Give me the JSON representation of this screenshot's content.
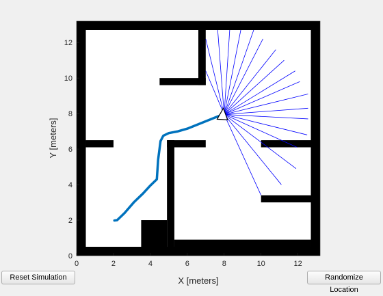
{
  "buttons": {
    "reset_label": "Reset Simulation",
    "randomize_label": "Randomize Location"
  },
  "colors": {
    "background": "#f0f0f0",
    "axes_bg": "#ffffff",
    "obstacle": "#000000",
    "path": "#0072bd",
    "rays": "#0000ff",
    "robot_fill": "#ffffff",
    "robot_edge": "#000000"
  },
  "chart_data": {
    "type": "line",
    "xlabel": "X [meters]",
    "ylabel": "Y [meters]",
    "xlim": [
      0,
      13.2
    ],
    "ylim": [
      0,
      13.2
    ],
    "xticks": [
      0,
      2,
      4,
      6,
      8,
      10,
      12
    ],
    "yticks": [
      0,
      2,
      4,
      6,
      8,
      10,
      12
    ],
    "grid": false,
    "obstacles": [
      {
        "x0": 0,
        "y0": 0,
        "x1": 0.5,
        "y1": 13.2
      },
      {
        "x0": 12.7,
        "y0": 0,
        "x1": 13.2,
        "y1": 13.2
      },
      {
        "x0": 0,
        "y0": 12.7,
        "x1": 13.2,
        "y1": 13.2
      },
      {
        "x0": 0,
        "y0": 0,
        "x1": 13.2,
        "y1": 0.5
      },
      {
        "x0": 6.6,
        "y0": 9.6,
        "x1": 7.0,
        "y1": 12.7
      },
      {
        "x0": 4.5,
        "y0": 9.6,
        "x1": 7.0,
        "y1": 10.0
      },
      {
        "x0": 0.5,
        "y0": 6.1,
        "x1": 2.0,
        "y1": 6.5
      },
      {
        "x0": 4.9,
        "y0": 0.5,
        "x1": 5.3,
        "y1": 6.5
      },
      {
        "x0": 4.9,
        "y0": 6.1,
        "x1": 7.0,
        "y1": 6.5
      },
      {
        "x0": 10.0,
        "y0": 6.1,
        "x1": 12.7,
        "y1": 6.5
      },
      {
        "x0": 10.0,
        "y0": 3.0,
        "x1": 12.7,
        "y1": 3.4
      },
      {
        "x0": 3.5,
        "y0": 0.5,
        "x1": 4.9,
        "y1": 2.0
      },
      {
        "x0": 5.3,
        "y0": 0.5,
        "x1": 12.7,
        "y1": 0.9
      }
    ],
    "path": {
      "x": [
        2.05,
        2.2,
        2.6,
        3.1,
        3.6,
        4.0,
        4.35,
        4.42,
        4.55,
        4.7,
        5.0,
        5.5,
        6.0,
        6.6,
        7.2,
        7.8,
        8.0
      ],
      "y": [
        1.98,
        2.0,
        2.4,
        3.0,
        3.5,
        3.95,
        4.3,
        5.4,
        6.45,
        6.75,
        6.9,
        7.0,
        7.15,
        7.4,
        7.65,
        7.9,
        8.0
      ]
    },
    "robot": {
      "x": 8.0,
      "y": 7.95,
      "heading_deg": 20
    },
    "lidar": {
      "origin": [
        8.0,
        7.95
      ],
      "endpoints": [
        [
          10.0,
          3.4
        ],
        [
          11.1,
          4.0
        ],
        [
          11.9,
          4.9
        ],
        [
          11.95,
          6.1
        ],
        [
          12.5,
          6.8
        ],
        [
          12.55,
          7.7
        ],
        [
          12.55,
          8.3
        ],
        [
          12.55,
          9.1
        ],
        [
          12.1,
          9.8
        ],
        [
          11.85,
          10.4
        ],
        [
          11.25,
          11.0
        ],
        [
          10.8,
          11.6
        ],
        [
          10.1,
          12.2
        ],
        [
          9.6,
          12.7
        ],
        [
          8.9,
          12.7
        ],
        [
          8.3,
          12.7
        ],
        [
          7.65,
          12.7
        ],
        [
          7.0,
          12.2
        ],
        [
          7.0,
          10.4
        ]
      ]
    }
  }
}
